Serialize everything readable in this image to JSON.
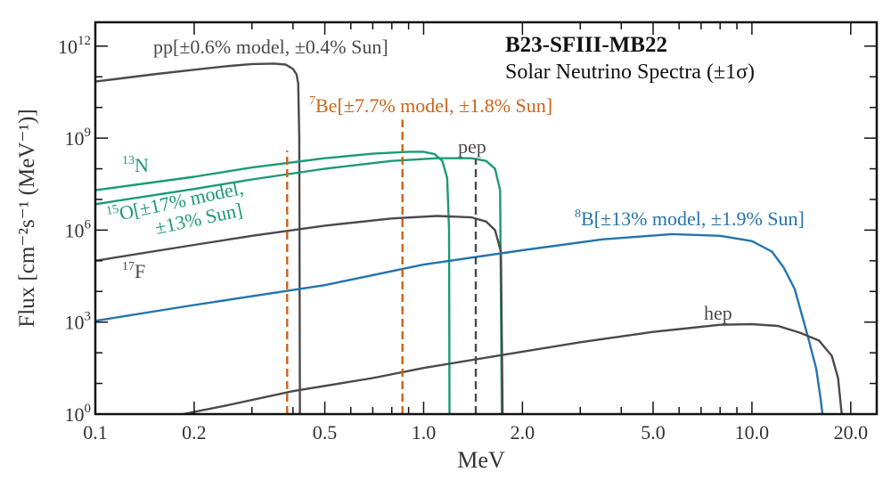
{
  "chart_data": {
    "type": "line",
    "title": "B23-SFIII-MB22",
    "subtitle": "Solar Neutrino Spectra (±1σ)",
    "xlabel": "MeV",
    "ylabel": "Flux [cm⁻²s⁻¹ (MeV⁻¹)]",
    "xscale": "log",
    "yscale": "log",
    "xlim": [
      0.1,
      24
    ],
    "ylim": [
      1,
      6000000000000.0
    ],
    "grid": false,
    "x_ticks": [
      "0.1",
      "0.2",
      "0.5",
      "1.0",
      "2.0",
      "5.0",
      "10.0",
      "20.0"
    ],
    "x_tick_values": [
      0.1,
      0.2,
      0.5,
      1.0,
      2.0,
      5.0,
      10.0,
      20.0
    ],
    "y_ticks": [
      {
        "base": "10",
        "exp": "0"
      },
      {
        "base": "10",
        "exp": "3"
      },
      {
        "base": "10",
        "exp": "6"
      },
      {
        "base": "10",
        "exp": "9"
      },
      {
        "base": "10",
        "exp": "12"
      }
    ],
    "y_tick_exponents": [
      0,
      3,
      6,
      9,
      12
    ],
    "colors": {
      "gray": "#4a4a4a",
      "orange": "#cc6218",
      "green": "#1a9a76",
      "blue": "#2474ad"
    },
    "series": [
      {
        "key": "pp",
        "color": "gray",
        "style": "solid",
        "points": [
          [
            0.1,
            70000000000.0
          ],
          [
            0.15,
            120000000000.0
          ],
          [
            0.2,
            170000000000.0
          ],
          [
            0.25,
            220000000000.0
          ],
          [
            0.3,
            260000000000.0
          ],
          [
            0.35,
            270000000000.0
          ],
          [
            0.38,
            250000000000.0
          ],
          [
            0.4,
            180000000000.0
          ],
          [
            0.41,
            120000000000.0
          ],
          [
            0.415,
            60000000000.0
          ],
          [
            0.418,
            1000000000.0
          ],
          [
            0.42,
            1
          ]
        ]
      },
      {
        "key": "13N",
        "color": "green",
        "style": "solid",
        "points": [
          [
            0.1,
            20000000.0
          ],
          [
            0.2,
            55000000.0
          ],
          [
            0.3,
            110000000.0
          ],
          [
            0.5,
            220000000.0
          ],
          [
            0.7,
            310000000.0
          ],
          [
            0.9,
            360000000.0
          ],
          [
            1.0,
            360000000.0
          ],
          [
            1.08,
            300000000.0
          ],
          [
            1.14,
            180000000.0
          ],
          [
            1.18,
            50000000.0
          ],
          [
            1.195,
            1000000.0
          ],
          [
            1.199,
            1
          ]
        ]
      },
      {
        "key": "15O",
        "color": "green",
        "style": "solid",
        "points": [
          [
            0.1,
            7000000.0
          ],
          [
            0.2,
            22000000.0
          ],
          [
            0.3,
            45000000.0
          ],
          [
            0.5,
            100000000.0
          ],
          [
            0.8,
            180000000.0
          ],
          [
            1.1,
            220000000.0
          ],
          [
            1.4,
            220000000.0
          ],
          [
            1.55,
            180000000.0
          ],
          [
            1.65,
            100000000.0
          ],
          [
            1.71,
            20000000.0
          ],
          [
            1.73,
            1
          ]
        ]
      },
      {
        "key": "17F",
        "color": "gray",
        "style": "solid",
        "points": [
          [
            0.1,
            100000.0
          ],
          [
            0.2,
            330000.0
          ],
          [
            0.3,
            650000.0
          ],
          [
            0.5,
            1400000.0
          ],
          [
            0.8,
            2400000.0
          ],
          [
            1.1,
            2900000.0
          ],
          [
            1.4,
            2600000.0
          ],
          [
            1.55,
            1900000.0
          ],
          [
            1.65,
            1000000.0
          ],
          [
            1.72,
            200000.0
          ],
          [
            1.74,
            1
          ]
        ]
      },
      {
        "key": "8B",
        "color": "blue",
        "style": "solid",
        "points": [
          [
            0.1,
            1100.0
          ],
          [
            0.2,
            3600.0
          ],
          [
            0.5,
            16000.0
          ],
          [
            1.0,
            75000.0
          ],
          [
            2,
            220000.0
          ],
          [
            3.5,
            500000.0
          ],
          [
            5.7,
            740000.0
          ],
          [
            8,
            650000.0
          ],
          [
            10,
            440000.0
          ],
          [
            11.5,
            200000.0
          ],
          [
            12.5,
            60000.0
          ],
          [
            13.5,
            12000.0
          ],
          [
            14.8,
            350
          ],
          [
            15.7,
            30
          ],
          [
            16.2,
            3
          ],
          [
            16.4,
            1
          ]
        ]
      },
      {
        "key": "hep",
        "color": "gray",
        "style": "solid",
        "points": [
          [
            0.185,
            1
          ],
          [
            0.25,
            1.9
          ],
          [
            0.4,
            5.6
          ],
          [
            0.7,
            15
          ],
          [
            1.0,
            32
          ],
          [
            1.8,
            90
          ],
          [
            3,
            220
          ],
          [
            5,
            480
          ],
          [
            8,
            820
          ],
          [
            10,
            860
          ],
          [
            12,
            750
          ],
          [
            14,
            450
          ],
          [
            16,
            250
          ],
          [
            17.5,
            80
          ],
          [
            18.3,
            15
          ],
          [
            18.77,
            1
          ]
        ]
      },
      {
        "key": "7Be-384",
        "color": "orange",
        "style": "dashed",
        "points": [
          [
            0.384,
            1
          ],
          [
            0.384,
            390000000.0
          ]
        ]
      },
      {
        "key": "7Be-862",
        "color": "orange",
        "style": "dashed",
        "points": [
          [
            0.862,
            1
          ],
          [
            0.862,
            4000000000.0
          ]
        ]
      },
      {
        "key": "pep",
        "color": "gray",
        "style": "dashed",
        "points": [
          [
            1.442,
            1
          ],
          [
            1.442,
            210000000.0
          ]
        ]
      }
    ],
    "annotations": {
      "pp": {
        "sup": "",
        "text": "pp[±0.6% model, ±0.4% Sun]"
      },
      "be7": {
        "sup": "7",
        "text": "Be[±7.7% model, ±1.8% Sun]"
      },
      "pep": {
        "sup": "",
        "text": "pep"
      },
      "n13": {
        "sup": "13",
        "text": "N"
      },
      "o15_line1": {
        "sup": "15",
        "text": "O[±17% model,"
      },
      "o15_line2": {
        "sup": "",
        "text": "±13% Sun]"
      },
      "f17": {
        "sup": "17",
        "text": "F"
      },
      "b8": {
        "sup": "8",
        "text": "B[±13% model, ±1.9% Sun]"
      },
      "hep": {
        "sup": "",
        "text": "hep"
      }
    }
  }
}
